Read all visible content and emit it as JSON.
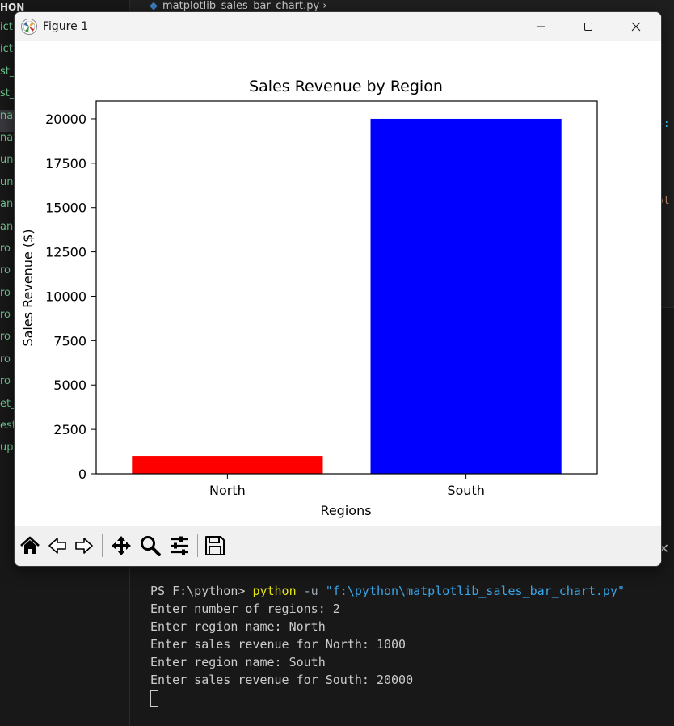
{
  "editor": {
    "sidebar_header": "HON",
    "file_items": [
      "ict",
      "ict",
      "st_",
      "st_",
      "nat",
      "nat",
      "un",
      "un",
      "an",
      "an",
      "ro",
      "ro",
      "ro",
      "ro",
      "ro",
      "ro",
      "ro",
      "et_",
      "est",
      "upl"
    ],
    "active_file_index": 4,
    "tab_title": "matplotlib_sales_bar_chart.py",
    "code_fragment_1": "}:",
    "code_fragment_2": "ol"
  },
  "figure_window": {
    "title": "Figure 1",
    "minimize_label": "—",
    "maximize_label": "☐",
    "close_label": "✕"
  },
  "chart_data": {
    "type": "bar",
    "title": "Sales Revenue by Region",
    "xlabel": "Regions",
    "ylabel": "Sales Revenue ($)",
    "categories": [
      "North",
      "South"
    ],
    "values": [
      1000,
      20000
    ],
    "colors": [
      "#ff0000",
      "#0000ff"
    ],
    "ylim": [
      0,
      21000
    ],
    "yticks": [
      0,
      2500,
      5000,
      7500,
      10000,
      12500,
      15000,
      17500,
      20000
    ],
    "grid": false
  },
  "toolbar": {
    "icons": [
      "home-icon",
      "back-icon",
      "forward-icon",
      "pan-icon",
      "zoom-icon",
      "configure-subplots-icon",
      "save-icon"
    ]
  },
  "terminal": {
    "prompt": "PS F:\\python> ",
    "command": "python",
    "flag": " -u ",
    "script_path": "\"f:\\python\\matplotlib_sales_bar_chart.py\"",
    "lines": [
      "Enter number of regions: 2",
      "Enter region name: North",
      "Enter sales revenue for North: 1000",
      "Enter region name: South",
      "Enter sales revenue for South: 20000"
    ]
  },
  "panel": {
    "close_label": "✕"
  }
}
